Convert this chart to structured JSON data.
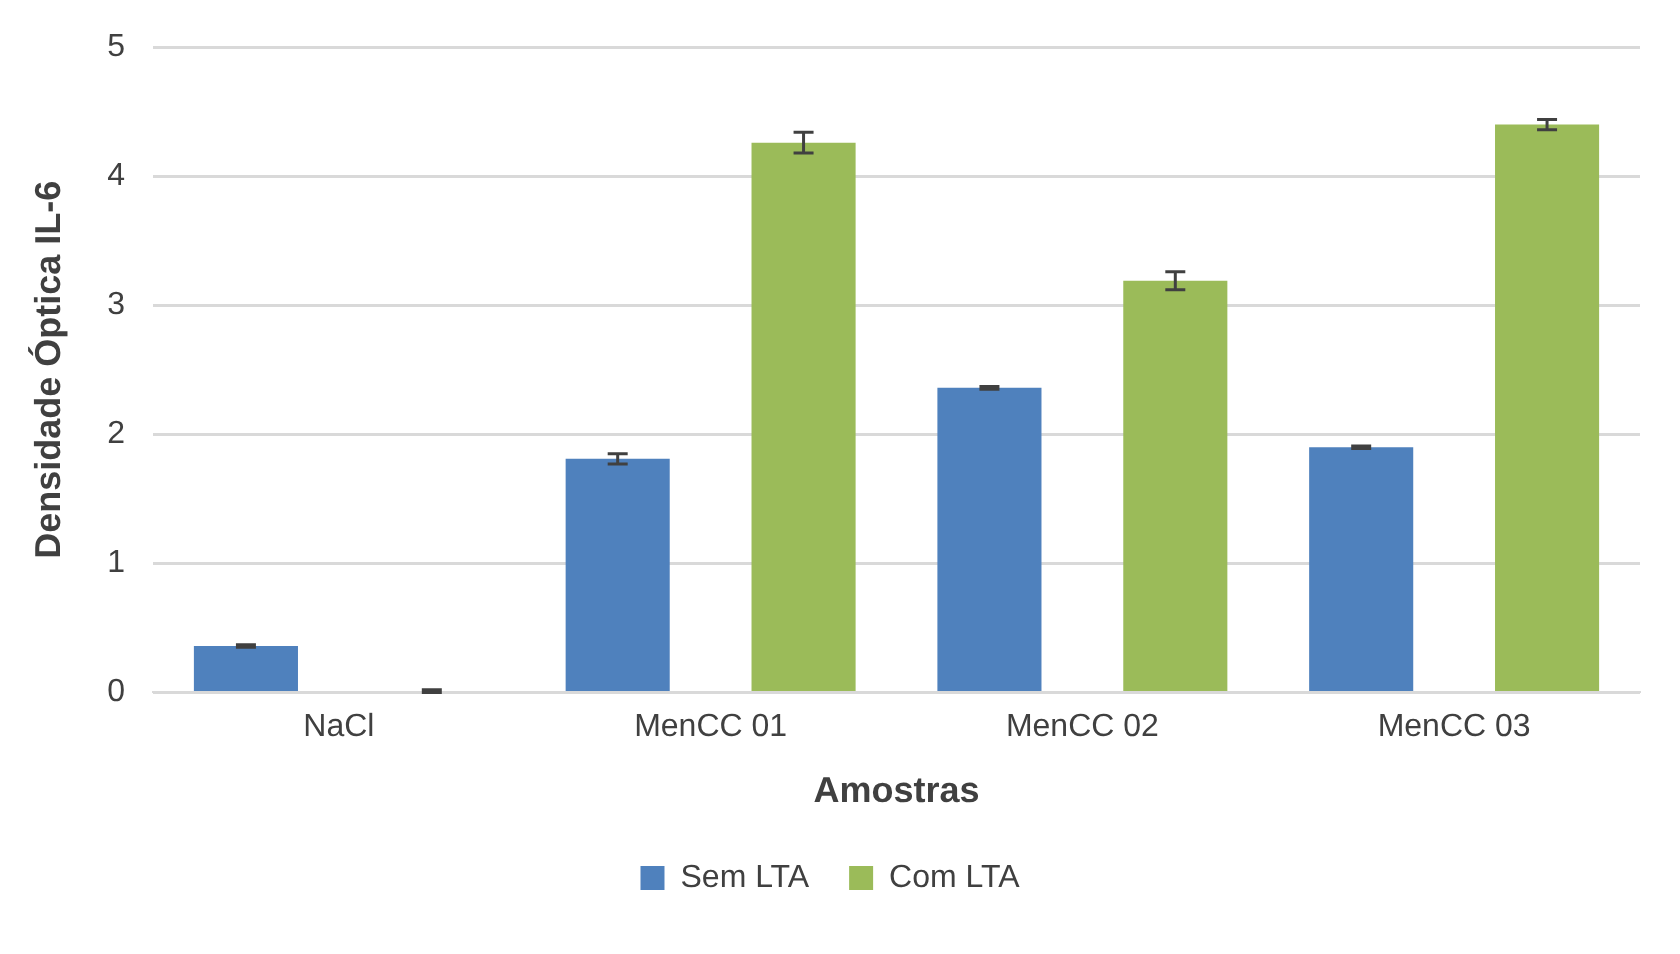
{
  "chart_data": {
    "type": "bar",
    "xlabel": "Amostras",
    "ylabel": "Densidade Óptica IL-6",
    "categories": [
      "NaCl",
      "MenCC 01",
      "MenCC 02",
      "MenCC 03"
    ],
    "series": [
      {
        "name": "Sem LTA",
        "color": "#4f81bd",
        "values": [
          0.36,
          1.81,
          2.36,
          1.9
        ],
        "errors": [
          0.01,
          0.04,
          0.01,
          0.01
        ]
      },
      {
        "name": "Com LTA",
        "color": "#9bbb59",
        "values": [
          0.01,
          4.26,
          3.19,
          4.4
        ],
        "errors": [
          0.01,
          0.08,
          0.07,
          0.04
        ]
      }
    ],
    "ylim": [
      0,
      5
    ],
    "yticks": [
      0,
      1,
      2,
      3,
      4,
      5
    ],
    "grid": "y",
    "legend": "bottom"
  }
}
